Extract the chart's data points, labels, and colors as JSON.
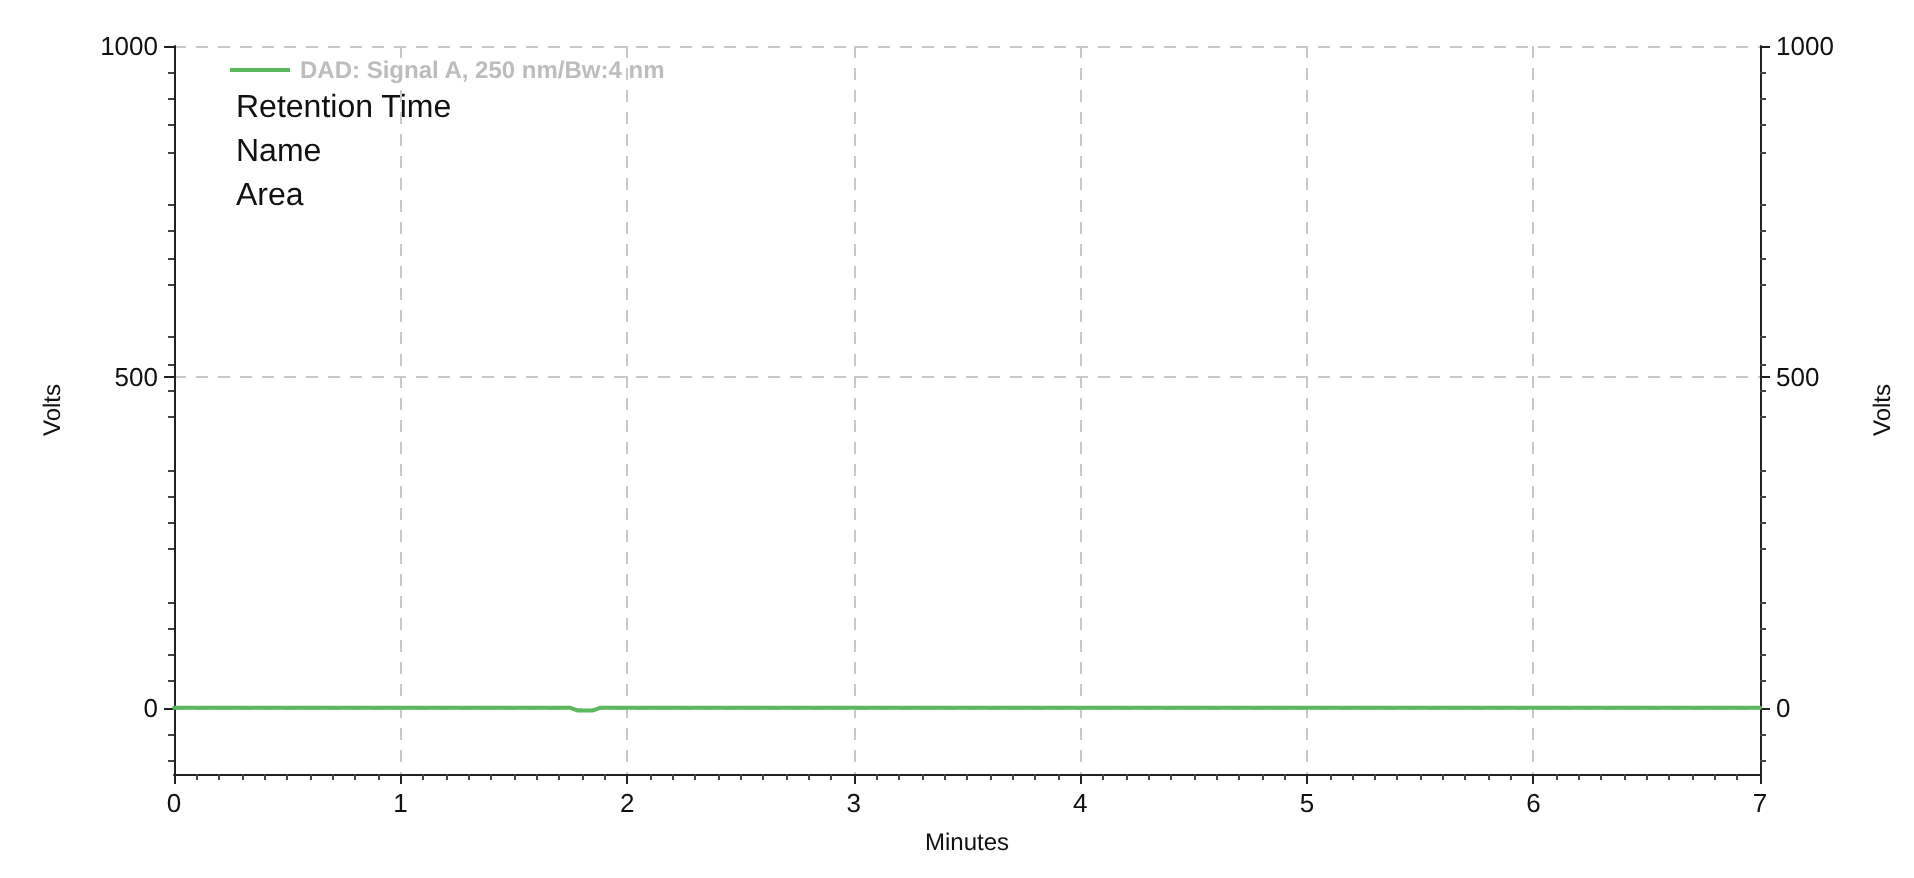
{
  "chart_data": {
    "type": "line",
    "xlabel": "Minutes",
    "ylabel": "Volts",
    "y2label": "Volts",
    "x": [
      0,
      1.75,
      1.78,
      1.85,
      1.88,
      7
    ],
    "series": [
      {
        "name": "DAD: Signal A, 250 nm/Bw:4 nm",
        "color": "#5cb85c",
        "values": [
          0,
          0,
          -4,
          -4,
          0,
          0
        ]
      }
    ],
    "xlim": [
      0,
      7
    ],
    "xticks": [
      0,
      1,
      2,
      3,
      4,
      5,
      6,
      7
    ],
    "ylim": [
      -100,
      1000
    ],
    "yticks": [
      0,
      500,
      1000
    ],
    "y2lim": [
      -100,
      1000
    ],
    "y2ticks": [
      0,
      500,
      1000
    ],
    "annotations": [
      "Retention Time",
      "Name",
      "Area"
    ],
    "grid": true,
    "legend": "top left",
    "marker": "none",
    "line_style": "solid"
  }
}
